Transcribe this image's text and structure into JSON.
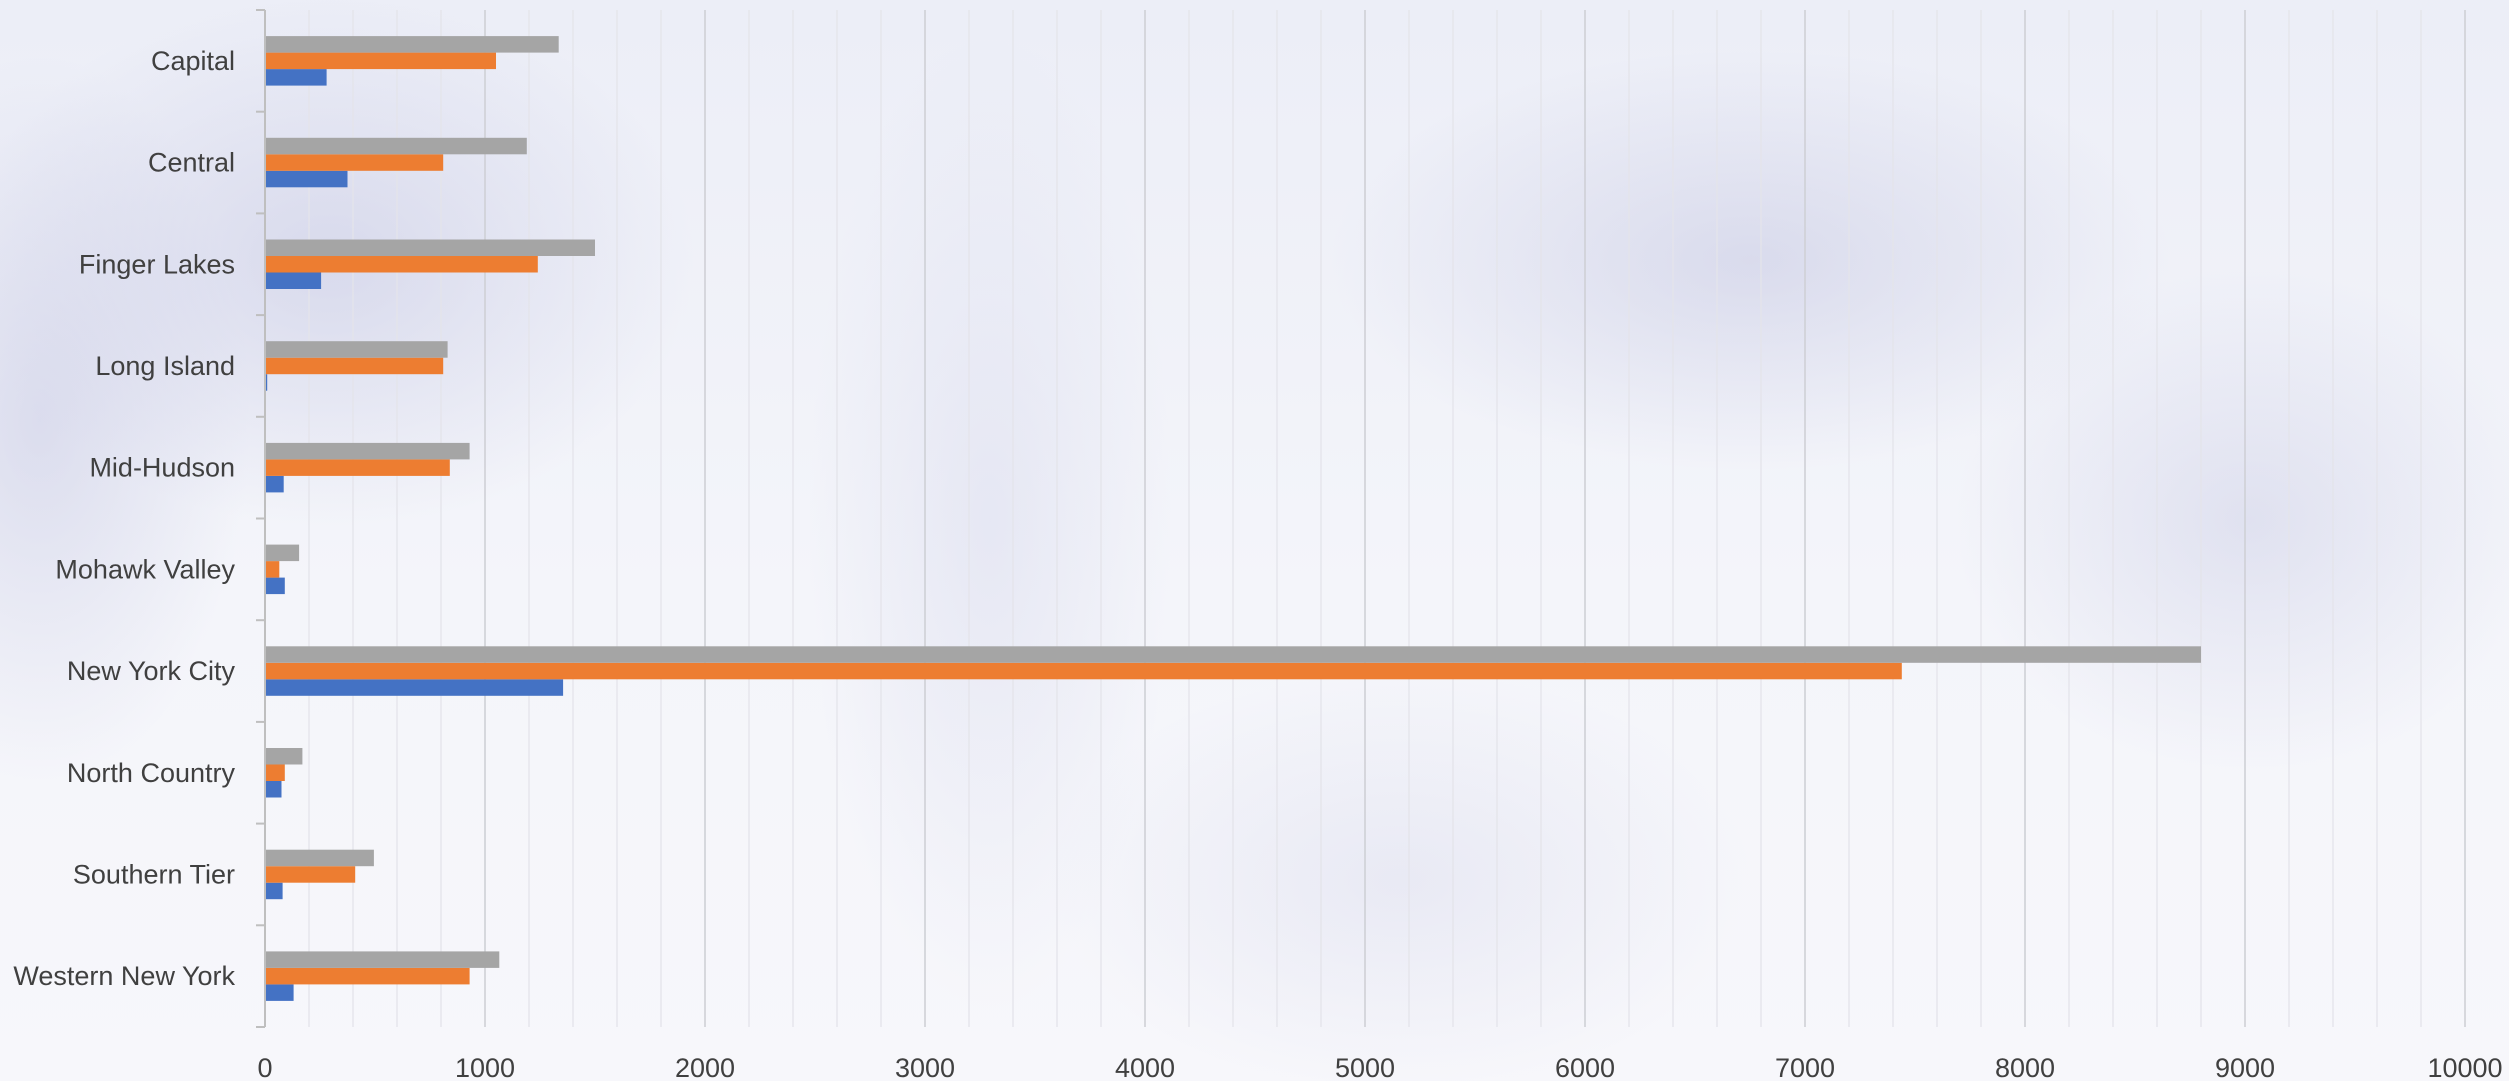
{
  "chart_data": {
    "type": "bar",
    "orientation": "horizontal",
    "categories": [
      "Capital",
      "Central",
      "Finger Lakes",
      "Long Island",
      "Mid-Hudson",
      "Mohawk Valley",
      "New York City",
      "North Country",
      "Southern Tier",
      "Western New York"
    ],
    "series": [
      {
        "color": "#4472C4",
        "values": [
          280,
          375,
          255,
          10,
          85,
          90,
          1355,
          75,
          80,
          130
        ]
      },
      {
        "color": "#ED7D31",
        "values": [
          1050,
          810,
          1240,
          810,
          840,
          65,
          7440,
          90,
          410,
          930
        ]
      },
      {
        "color": "#A5A5A5",
        "values": [
          1335,
          1190,
          1500,
          830,
          930,
          155,
          8800,
          170,
          495,
          1065
        ]
      }
    ],
    "xlim": [
      0,
      10000
    ],
    "x_ticks": [
      "0",
      "1000",
      "2000",
      "3000",
      "4000",
      "5000",
      "6000",
      "7000",
      "8000",
      "9000",
      "10000"
    ],
    "major_gridlines": true,
    "minor_gridlines": true,
    "legend": "none",
    "title": "",
    "xlabel": "",
    "ylabel": ""
  }
}
